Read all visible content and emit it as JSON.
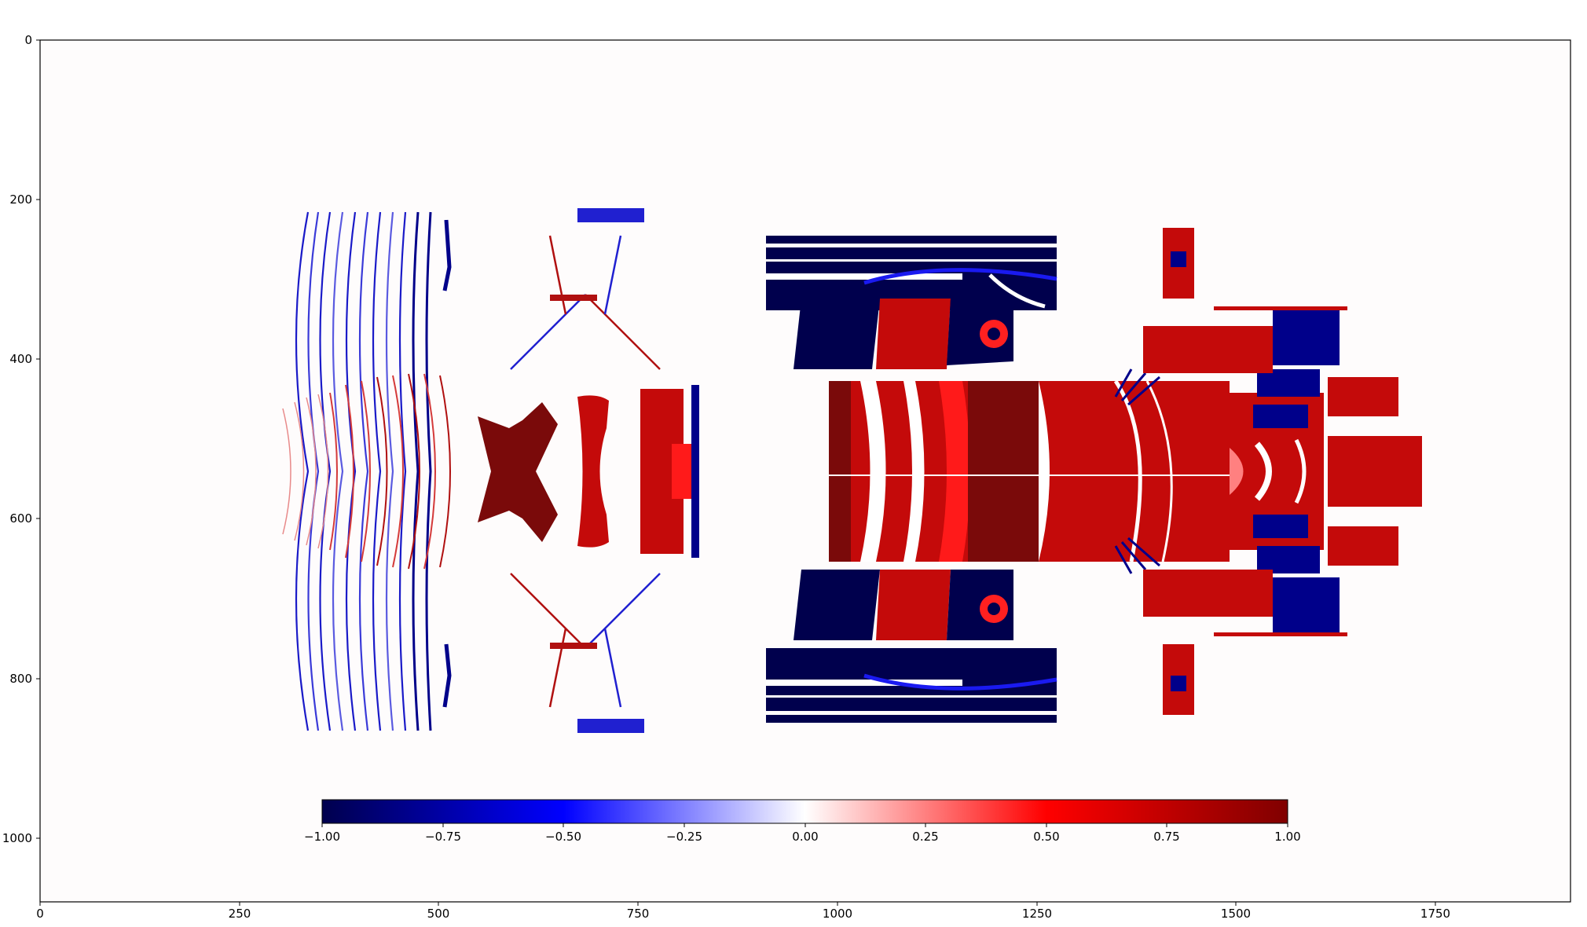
{
  "chart_data": {
    "type": "heatmap",
    "title": "",
    "xlabel": "",
    "ylabel": "",
    "xlim": [
      0,
      1920
    ],
    "ylim": [
      1080,
      0
    ],
    "x_ticks": [
      0,
      250,
      500,
      750,
      1000,
      1250,
      1500,
      1750
    ],
    "y_ticks": [
      0,
      200,
      400,
      600,
      800,
      1000
    ],
    "grid": false,
    "background_color": "#fefcfc",
    "colormap": "seismic",
    "colorbar": {
      "orientation": "horizontal",
      "placement": "inset-bottom",
      "range": [
        -1.0,
        1.0
      ],
      "ticks": [
        -1.0,
        -0.75,
        -0.5,
        -0.25,
        0.0,
        0.25,
        0.5,
        0.75,
        1.0
      ],
      "tick_labels": [
        "−1.00",
        "−0.75",
        "−0.50",
        "−0.25",
        "0.00",
        "0.25",
        "0.50",
        "0.75",
        "1.00"
      ],
      "colors": [
        "#00004d",
        "#0000ff",
        "#ffffff",
        "#ff0000",
        "#800000"
      ]
    },
    "regions": [
      {
        "name": "left-contour-field",
        "x": [
          295,
          570
        ],
        "y": [
          205,
          875
        ],
        "dominant_value": -0.8
      },
      {
        "name": "left-center-red-block",
        "x": [
          545,
          830
        ],
        "y": [
          440,
          645
        ],
        "dominant_value": 0.85
      },
      {
        "name": "center-top-band",
        "x": [
          905,
          1245
        ],
        "y": [
          230,
          310
        ],
        "dominant_value": -0.9
      },
      {
        "name": "center-bottom-band",
        "x": [
          905,
          1245
        ],
        "y": [
          770,
          850
        ],
        "dominant_value": -0.9
      },
      {
        "name": "center-main-red-block",
        "x": [
          985,
          1560
        ],
        "y": [
          430,
          650
        ],
        "dominant_value": 0.8
      },
      {
        "name": "right-upper-block",
        "x": [
          1290,
          1565
        ],
        "y": [
          330,
          430
        ],
        "dominant_value": 0.6
      },
      {
        "name": "right-lower-block",
        "x": [
          1290,
          1565
        ],
        "y": [
          650,
          750
        ],
        "dominant_value": 0.6
      }
    ]
  }
}
